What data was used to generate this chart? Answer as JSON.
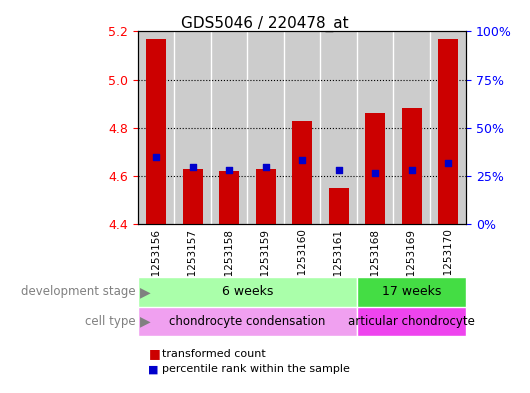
{
  "title": "GDS5046 / 220478_at",
  "samples": [
    "GSM1253156",
    "GSM1253157",
    "GSM1253158",
    "GSM1253159",
    "GSM1253160",
    "GSM1253161",
    "GSM1253168",
    "GSM1253169",
    "GSM1253170"
  ],
  "transformed_counts": [
    5.17,
    4.63,
    4.62,
    4.63,
    4.83,
    4.55,
    4.86,
    4.88,
    5.17
  ],
  "percentile_values": [
    4.68,
    4.635,
    4.625,
    4.635,
    4.665,
    4.625,
    4.61,
    4.625,
    4.655
  ],
  "ymin": 4.4,
  "ymax": 5.2,
  "yticks": [
    4.4,
    4.6,
    4.8,
    5.0,
    5.2
  ],
  "right_yticks": [
    0,
    25,
    50,
    75,
    100
  ],
  "gridlines": [
    4.6,
    4.8,
    5.0
  ],
  "bar_color": "#cc0000",
  "dot_color": "#0000cc",
  "bar_width": 0.55,
  "bg_color": "#ffffff",
  "sample_bg_color": "#cccccc",
  "group1_label": "6 weeks",
  "group2_label": "17 weeks",
  "group1_color": "#aaffaa",
  "group2_color": "#44dd44",
  "celltype1_label": "chondrocyte condensation",
  "celltype2_label": "articular chondrocyte",
  "celltype1_color": "#f0a0f0",
  "celltype2_color": "#ee44ee",
  "group1_samples": 6,
  "group2_samples": 3,
  "dev_stage_label": "development stage",
  "cell_type_label": "cell type",
  "legend_bar_label": "transformed count",
  "legend_dot_label": "percentile rank within the sample"
}
